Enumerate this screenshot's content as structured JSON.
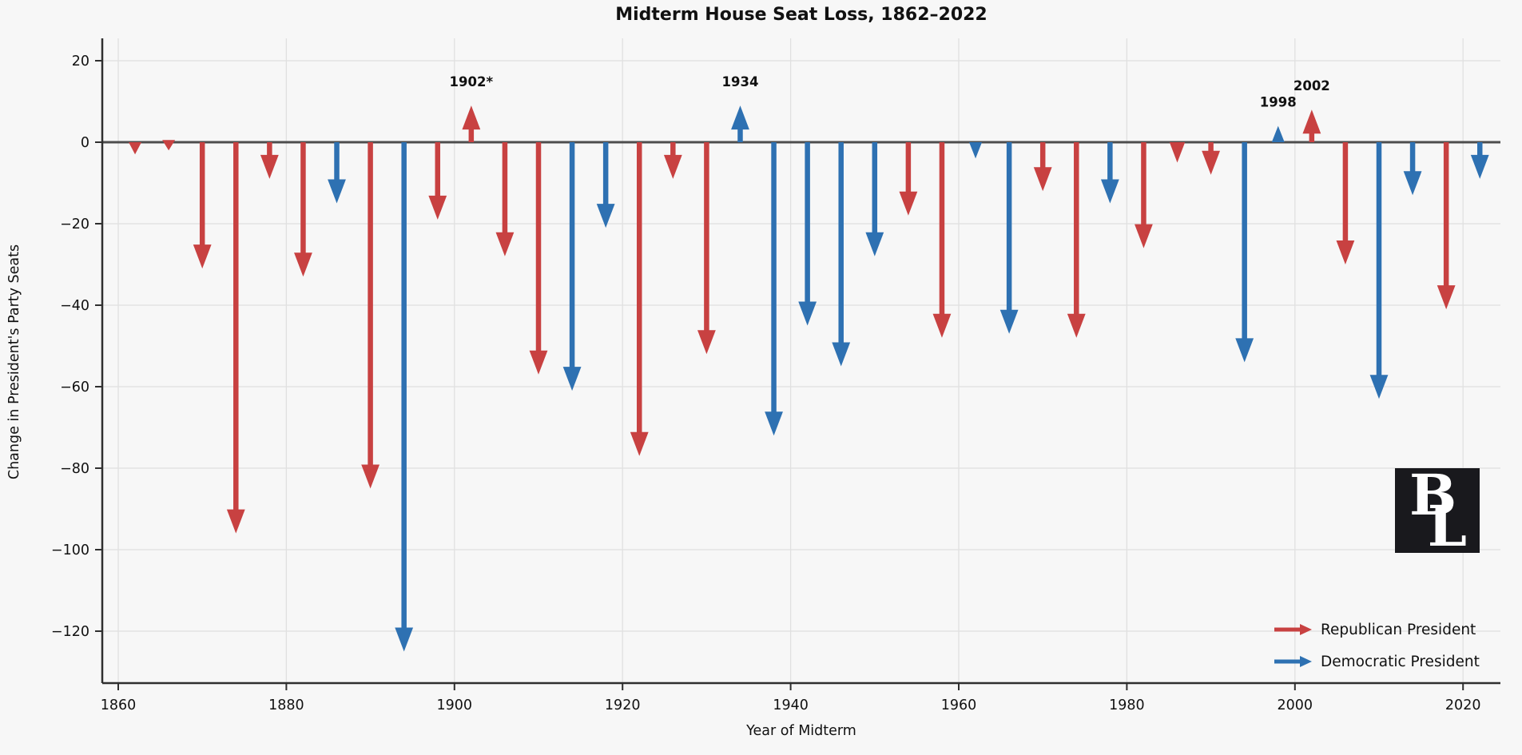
{
  "title": "Midterm House Seat Loss, 1862–2022",
  "xlabel": "Year of Midterm",
  "ylabel": "Change in President's Party Seats",
  "colors": {
    "background": "#f7f7f7",
    "republican": "#c84141",
    "democratic": "#2e71b2",
    "grid": "#e0e0e0",
    "zero_line": "#4d4d4d",
    "spine": "#2f2f2f",
    "text": "#111111",
    "logo_bg": "#19191d",
    "logo_text": "#ffffff"
  },
  "legend": {
    "position": "lower right",
    "items": [
      {
        "label": "Republican President",
        "color": "#c84141"
      },
      {
        "label": "Democratic President",
        "color": "#2e71b2"
      }
    ]
  },
  "logo": {
    "letter_b": "B",
    "letter_l": "L"
  },
  "annotations": [
    {
      "year": 1902,
      "label": "1902*"
    },
    {
      "year": 1934,
      "label": "1934"
    },
    {
      "year": 1998,
      "label": "1998"
    },
    {
      "year": 2002,
      "label": "2002"
    }
  ],
  "chart_data": {
    "type": "bar",
    "marker_style": "arrow",
    "title": "Midterm House Seat Loss, 1862–2022",
    "xlabel": "Year of Midterm",
    "ylabel": "Change in President's Party Seats",
    "x_ticks": [
      1860,
      1880,
      1900,
      1920,
      1940,
      1960,
      1980,
      2000,
      2020
    ],
    "y_ticks": [
      20,
      0,
      -20,
      -40,
      -60,
      -80,
      -100,
      -120
    ],
    "xlim": [
      1858,
      2025
    ],
    "ylim": [
      -133,
      25
    ],
    "grid": true,
    "points": [
      {
        "year": 1862,
        "change": -3,
        "party": "R"
      },
      {
        "year": 1866,
        "change": -2,
        "party": "R"
      },
      {
        "year": 1870,
        "change": -31,
        "party": "R"
      },
      {
        "year": 1874,
        "change": -96,
        "party": "R"
      },
      {
        "year": 1878,
        "change": -9,
        "party": "R"
      },
      {
        "year": 1882,
        "change": -33,
        "party": "R"
      },
      {
        "year": 1886,
        "change": -15,
        "party": "D"
      },
      {
        "year": 1890,
        "change": -85,
        "party": "R"
      },
      {
        "year": 1894,
        "change": -125,
        "party": "D"
      },
      {
        "year": 1898,
        "change": -19,
        "party": "R"
      },
      {
        "year": 1902,
        "change": 9,
        "party": "R"
      },
      {
        "year": 1906,
        "change": -28,
        "party": "R"
      },
      {
        "year": 1910,
        "change": -57,
        "party": "R"
      },
      {
        "year": 1914,
        "change": -61,
        "party": "D"
      },
      {
        "year": 1918,
        "change": -21,
        "party": "D"
      },
      {
        "year": 1922,
        "change": -77,
        "party": "R"
      },
      {
        "year": 1926,
        "change": -9,
        "party": "R"
      },
      {
        "year": 1930,
        "change": -52,
        "party": "R"
      },
      {
        "year": 1934,
        "change": 9,
        "party": "D"
      },
      {
        "year": 1938,
        "change": -72,
        "party": "D"
      },
      {
        "year": 1942,
        "change": -45,
        "party": "D"
      },
      {
        "year": 1946,
        "change": -55,
        "party": "D"
      },
      {
        "year": 1950,
        "change": -28,
        "party": "D"
      },
      {
        "year": 1954,
        "change": -18,
        "party": "R"
      },
      {
        "year": 1958,
        "change": -48,
        "party": "R"
      },
      {
        "year": 1962,
        "change": -4,
        "party": "D"
      },
      {
        "year": 1966,
        "change": -47,
        "party": "D"
      },
      {
        "year": 1970,
        "change": -12,
        "party": "R"
      },
      {
        "year": 1974,
        "change": -48,
        "party": "R"
      },
      {
        "year": 1978,
        "change": -15,
        "party": "D"
      },
      {
        "year": 1982,
        "change": -26,
        "party": "R"
      },
      {
        "year": 1986,
        "change": -5,
        "party": "R"
      },
      {
        "year": 1990,
        "change": -8,
        "party": "R"
      },
      {
        "year": 1994,
        "change": -54,
        "party": "D"
      },
      {
        "year": 1998,
        "change": 4,
        "party": "D"
      },
      {
        "year": 2002,
        "change": 8,
        "party": "R"
      },
      {
        "year": 2006,
        "change": -30,
        "party": "R"
      },
      {
        "year": 2010,
        "change": -63,
        "party": "D"
      },
      {
        "year": 2014,
        "change": -13,
        "party": "D"
      },
      {
        "year": 2018,
        "change": -41,
        "party": "R"
      },
      {
        "year": 2022,
        "change": -9,
        "party": "D"
      }
    ]
  }
}
